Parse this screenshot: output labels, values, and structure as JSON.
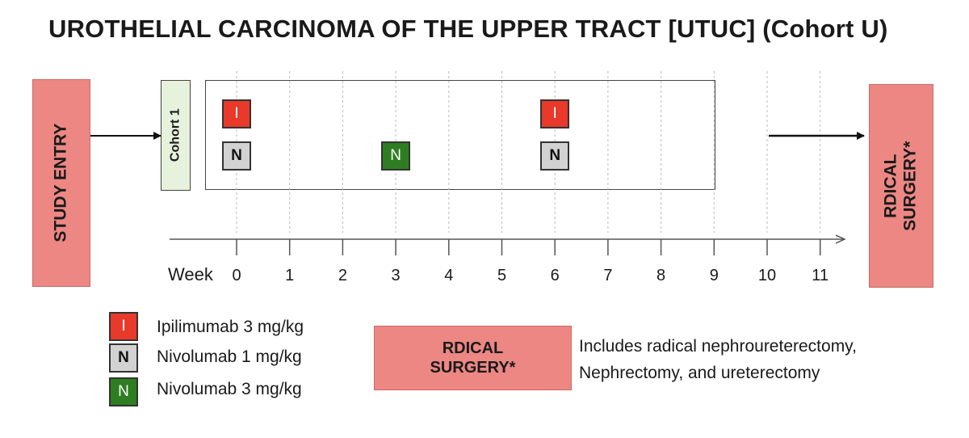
{
  "title": "UROTHELIAL CARCINOMA OF THE UPPER TRACT [UTUC] (Cohort U)",
  "study_entry_label": "STUDY ENTRY",
  "cohort_label": "Cohort 1",
  "surgery_label_line1": "RDICAL",
  "surgery_label_line2": "SURGERY*",
  "axis": {
    "label": "Week",
    "ticks": [
      "0",
      "1",
      "2",
      "3",
      "4",
      "5",
      "6",
      "7",
      "8",
      "9",
      "10",
      "11"
    ]
  },
  "doses": [
    {
      "week": 0,
      "drug": "ipilimumab",
      "letter": "I"
    },
    {
      "week": 0,
      "drug": "nivolumab_1",
      "letter": "N"
    },
    {
      "week": 3,
      "drug": "nivolumab_3",
      "letter": "N"
    },
    {
      "week": 6,
      "drug": "ipilimumab",
      "letter": "I"
    },
    {
      "week": 6,
      "drug": "nivolumab_1",
      "letter": "N"
    }
  ],
  "legend": [
    {
      "letter": "I",
      "text": "Ipilimumab 3 mg/kg",
      "color": "#e8392a"
    },
    {
      "letter": "N",
      "text": "Nivolumab 1 mg/kg",
      "color": "#d2d2d2"
    },
    {
      "letter": "N",
      "text": "Nivolumab 3 mg/kg",
      "color": "#2e7d22"
    }
  ],
  "surgery_note_line1": "Includes radical nephroureterectomy,",
  "surgery_note_line2": "Nephrectomy, and ureterectomy",
  "colors": {
    "surgery": "#ec8783",
    "cohort": "#e6f2dc"
  }
}
